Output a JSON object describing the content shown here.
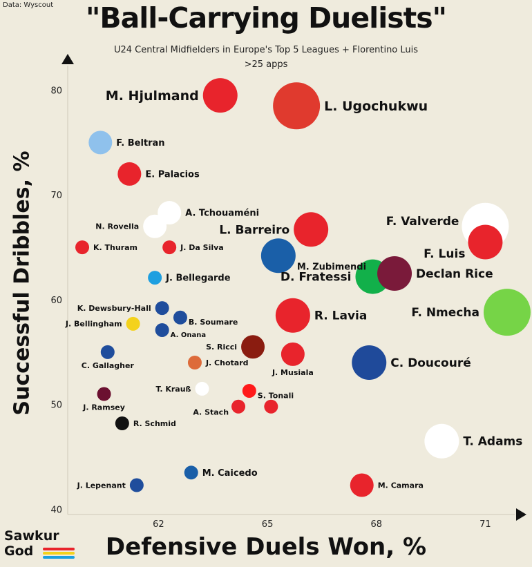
{
  "source": "Data: Wyscout",
  "chart_data": {
    "type": "scatter",
    "title": "\"Ball-Carrying Duelists\"",
    "subtitle": "U24 Central Midfielders in Europe's Top 5 Leagues + Florentino Luis",
    "subtitle2": ">25 apps",
    "xlabel": "Defensive Duels Won, %",
    "ylabel": "Successful Dribbles, %",
    "xlim": [
      59.5,
      72.0
    ],
    "ylim": [
      39.5,
      83.0
    ],
    "xticks": [
      62,
      65,
      68,
      71
    ],
    "yticks": [
      40,
      50,
      60,
      70,
      80
    ],
    "grid": false,
    "points": [
      {
        "name": "M. Hjulmand",
        "x": 63.7,
        "y": 79.5,
        "size": "large",
        "color": "#e8242c"
      },
      {
        "name": "L. Ugochukwu",
        "x": 65.8,
        "y": 78.5,
        "size": "xlarge",
        "color": "#e03a2e"
      },
      {
        "name": "F. Beltran",
        "x": 60.4,
        "y": 75.0,
        "size": "medium",
        "color": "#8fc1ec"
      },
      {
        "name": "E. Palacios",
        "x": 61.2,
        "y": 72.0,
        "size": "medium",
        "color": "#e8242c"
      },
      {
        "name": "A. Tchouaméni",
        "x": 62.3,
        "y": 68.3,
        "size": "medium",
        "color": "#ffffff"
      },
      {
        "name": "N. Rovella",
        "x": 61.9,
        "y": 67.0,
        "size": "medium",
        "color": "#ffffff"
      },
      {
        "name": "L. Barreiro",
        "x": 66.2,
        "y": 66.7,
        "size": "large",
        "color": "#e8242c"
      },
      {
        "name": "F. Valverde",
        "x": 71.0,
        "y": 67.0,
        "size": "xlarge",
        "color": "#ffffff"
      },
      {
        "name": "F. Luis",
        "x": 71.0,
        "y": 65.5,
        "size": "large",
        "color": "#e8242c"
      },
      {
        "name": "K. Thuram",
        "x": 59.9,
        "y": 65.0,
        "size": "small",
        "color": "#e8242c"
      },
      {
        "name": "J. Da Silva",
        "x": 62.3,
        "y": 65.0,
        "size": "small",
        "color": "#e8242c"
      },
      {
        "name": "M. Zubimendi",
        "x": 65.3,
        "y": 64.2,
        "size": "large",
        "color": "#1a5fa8"
      },
      {
        "name": "D. Fratessi",
        "x": 67.9,
        "y": 62.2,
        "size": "large",
        "color": "#12b04a"
      },
      {
        "name": "Declan Rice",
        "x": 68.5,
        "y": 62.5,
        "size": "large",
        "color": "#7a1a3a"
      },
      {
        "name": "J. Bellegarde",
        "x": 61.9,
        "y": 62.1,
        "size": "small",
        "color": "#1e9fe0"
      },
      {
        "name": "F. Nmecha",
        "x": 71.6,
        "y": 58.8,
        "size": "xlarge",
        "color": "#76d447"
      },
      {
        "name": "K. Dewsbury-Hall",
        "x": 62.1,
        "y": 59.2,
        "size": "small",
        "color": "#1f4d9c"
      },
      {
        "name": "B. Soumare",
        "x": 62.6,
        "y": 58.3,
        "size": "small",
        "color": "#1f4d9c"
      },
      {
        "name": "J. Bellingham",
        "x": 61.3,
        "y": 57.7,
        "size": "small",
        "color": "#f4d21c"
      },
      {
        "name": "A. Onana",
        "x": 62.1,
        "y": 57.1,
        "size": "small",
        "color": "#1f4d9c"
      },
      {
        "name": "R. Lavia",
        "x": 65.7,
        "y": 58.5,
        "size": "large",
        "color": "#e8242c"
      },
      {
        "name": "S. Ricci",
        "x": 64.6,
        "y": 55.5,
        "size": "medium",
        "color": "#8a1c10"
      },
      {
        "name": "J. Musiala",
        "x": 65.7,
        "y": 54.8,
        "size": "medium",
        "color": "#e8242c"
      },
      {
        "name": "C. Doucouré",
        "x": 67.8,
        "y": 54.0,
        "size": "large",
        "color": "#1f4a9a"
      },
      {
        "name": "C. Gallagher",
        "x": 60.6,
        "y": 55.0,
        "size": "small",
        "color": "#1f4d9c"
      },
      {
        "name": "J. Chotard",
        "x": 63.0,
        "y": 54.0,
        "size": "small",
        "color": "#dd6b3a"
      },
      {
        "name": "T. Krauß",
        "x": 63.2,
        "y": 51.5,
        "size": "small",
        "color": "#ffffff"
      },
      {
        "name": "S. Tonali",
        "x": 64.5,
        "y": 51.3,
        "size": "small",
        "color": "#ff1a1a"
      },
      {
        "name": "J. Ramsey",
        "x": 60.5,
        "y": 51.0,
        "size": "small",
        "color": "#6b1030"
      },
      {
        "name": "A. Stach",
        "x": 64.2,
        "y": 49.8,
        "size": "small",
        "color": "#e8242c"
      },
      {
        "name": "A. Stach 2",
        "x": 65.1,
        "y": 49.8,
        "size": "small",
        "color": "#e8242c"
      },
      {
        "name": "R. Schmid",
        "x": 61.0,
        "y": 48.2,
        "size": "small",
        "color": "#111111"
      },
      {
        "name": "T. Adams",
        "x": 69.8,
        "y": 46.5,
        "size": "large",
        "color": "#ffffff"
      },
      {
        "name": "M. Caicedo",
        "x": 62.9,
        "y": 43.5,
        "size": "small",
        "color": "#1a5fa8"
      },
      {
        "name": "J. Lepenant",
        "x": 61.4,
        "y": 42.3,
        "size": "small",
        "color": "#1f4d9c"
      },
      {
        "name": "M. Camara",
        "x": 67.6,
        "y": 42.3,
        "size": "medium",
        "color": "#e8242c"
      }
    ]
  },
  "labels": [
    {
      "text": "M. Hjulmand",
      "for": 0,
      "side": "left",
      "weight": "xl"
    },
    {
      "text": "L. Ugochukwu",
      "for": 1,
      "side": "right",
      "weight": "xl"
    },
    {
      "text": "F. Beltran",
      "for": 2,
      "side": "right",
      "weight": "m"
    },
    {
      "text": "E. Palacios",
      "for": 3,
      "side": "right",
      "weight": "m"
    },
    {
      "text": "A. Tchouaméni",
      "for": 4,
      "side": "right",
      "weight": "m"
    },
    {
      "text": "N. Rovella",
      "for": 5,
      "side": "left",
      "weight": "s"
    },
    {
      "text": "L. Barreiro",
      "for": 6,
      "side": "left",
      "weight": "l"
    },
    {
      "text": "F. Valverde",
      "for": 7,
      "side": "leftup",
      "weight": "l"
    },
    {
      "text": "F. Luis",
      "for": 8,
      "side": "leftdown",
      "weight": "l"
    },
    {
      "text": "K. Thuram",
      "for": 9,
      "side": "right",
      "weight": "s"
    },
    {
      "text": "J. Da Silva",
      "for": 10,
      "side": "right",
      "weight": "s"
    },
    {
      "text": "M. Zubimendi",
      "for": 11,
      "side": "rightdown",
      "weight": "m"
    },
    {
      "text": "D. Fratessi",
      "for": 12,
      "side": "left",
      "weight": "l"
    },
    {
      "text": "Declan Rice",
      "for": 13,
      "side": "right",
      "weight": "l"
    },
    {
      "text": "J. Bellegarde",
      "for": 14,
      "side": "right",
      "weight": "m"
    },
    {
      "text": "F. Nmecha",
      "for": 15,
      "side": "left",
      "weight": "l"
    },
    {
      "text": "K. Dewsbury-Hall",
      "for": 16,
      "side": "left",
      "weight": "s"
    },
    {
      "text": "B. Soumare",
      "for": 17,
      "side": "rightdown",
      "weight": "s"
    },
    {
      "text": "J. Bellingham",
      "for": 18,
      "side": "left",
      "weight": "s"
    },
    {
      "text": "A. Onana",
      "for": 19,
      "side": "rightdown",
      "weight": "xs"
    },
    {
      "text": "R. Lavia",
      "for": 20,
      "side": "right",
      "weight": "l"
    },
    {
      "text": "S. Ricci",
      "for": 21,
      "side": "left",
      "weight": "s"
    },
    {
      "text": "J. Musiala",
      "for": 22,
      "side": "below",
      "weight": "s"
    },
    {
      "text": "C. Doucouré",
      "for": 23,
      "side": "right",
      "weight": "l"
    },
    {
      "text": "C. Gallagher",
      "for": 24,
      "side": "below",
      "weight": "s"
    },
    {
      "text": "J. Chotard",
      "for": 25,
      "side": "right",
      "weight": "s"
    },
    {
      "text": "T. Krauß",
      "for": 26,
      "side": "left",
      "weight": "s"
    },
    {
      "text": "S. Tonali",
      "for": 27,
      "side": "rightdown",
      "weight": "s"
    },
    {
      "text": "J. Ramsey",
      "for": 28,
      "side": "below",
      "weight": "s"
    },
    {
      "text": "A. Stach",
      "for": 29,
      "side": "leftdown",
      "weight": "s"
    },
    {
      "text": "R. Schmid",
      "for": 31,
      "side": "right",
      "weight": "s"
    },
    {
      "text": "T. Adams",
      "for": 32,
      "side": "right",
      "weight": "l"
    },
    {
      "text": "M. Caicedo",
      "for": 33,
      "side": "right",
      "weight": "m"
    },
    {
      "text": "J. Lepenant",
      "for": 34,
      "side": "left",
      "weight": "s"
    },
    {
      "text": "M. Camara",
      "for": 35,
      "side": "right",
      "weight": "s"
    }
  ],
  "logo": {
    "line1": "Sawkur",
    "line2": "God",
    "colors": [
      "#e8242c",
      "#f4d21c",
      "#1a9fe0"
    ]
  }
}
